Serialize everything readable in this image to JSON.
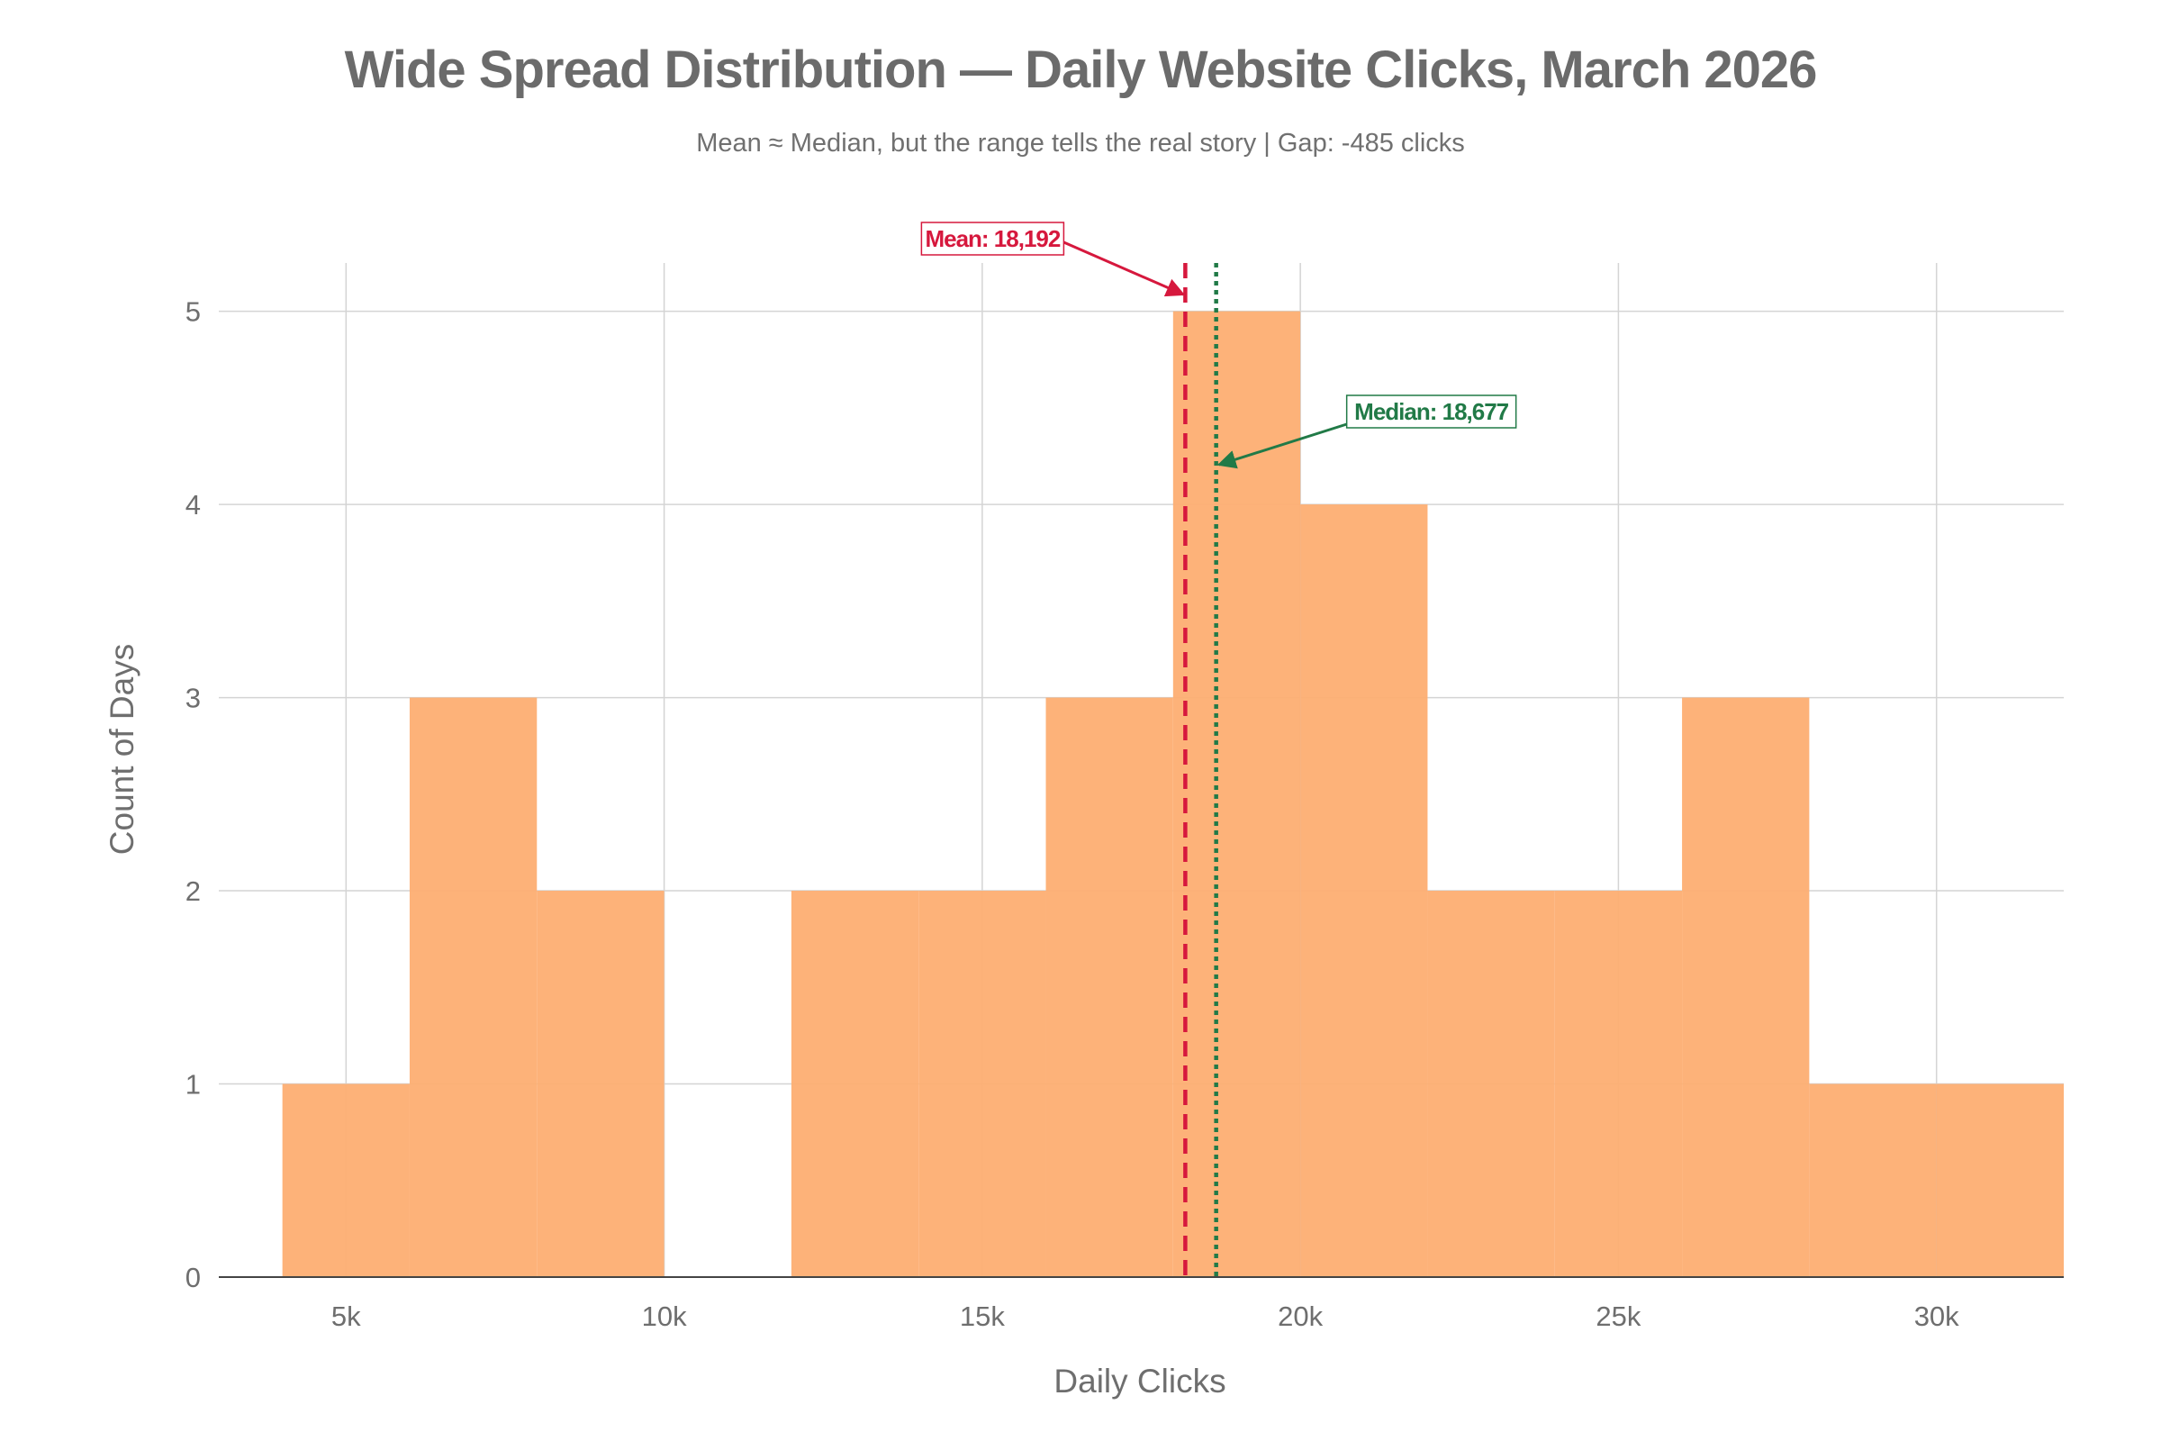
{
  "chart_data": {
    "type": "bar",
    "subtype": "histogram",
    "title": "Wide Spread Distribution — Daily Website Clicks, March 2026",
    "subtitle": "Mean ≈ Median, but the range tells the real story | Gap: -485 clicks",
    "xlabel": "Daily Clicks",
    "ylabel": "Count of Days",
    "xlim": [
      3000,
      32000
    ],
    "ylim": [
      0,
      5.25
    ],
    "x_ticks": [
      5000,
      10000,
      15000,
      20000,
      25000,
      30000
    ],
    "x_tick_labels": [
      "5k",
      "10k",
      "15k",
      "20k",
      "25k",
      "30k"
    ],
    "y_ticks": [
      0,
      1,
      2,
      3,
      4,
      5
    ],
    "y_tick_labels": [
      "0",
      "1",
      "2",
      "3",
      "4",
      "5"
    ],
    "grid": true,
    "bar_color": "#fdae72",
    "bins": [
      {
        "start": 4000,
        "end": 6000,
        "count": 1
      },
      {
        "start": 6000,
        "end": 8000,
        "count": 3
      },
      {
        "start": 8000,
        "end": 10000,
        "count": 2
      },
      {
        "start": 10000,
        "end": 12000,
        "count": 0
      },
      {
        "start": 12000,
        "end": 14000,
        "count": 2
      },
      {
        "start": 14000,
        "end": 16000,
        "count": 2
      },
      {
        "start": 16000,
        "end": 18000,
        "count": 3
      },
      {
        "start": 18000,
        "end": 20000,
        "count": 5
      },
      {
        "start": 20000,
        "end": 22000,
        "count": 4
      },
      {
        "start": 22000,
        "end": 24000,
        "count": 2
      },
      {
        "start": 24000,
        "end": 26000,
        "count": 2
      },
      {
        "start": 26000,
        "end": 28000,
        "count": 3
      },
      {
        "start": 28000,
        "end": 30000,
        "count": 1
      },
      {
        "start": 30000,
        "end": 32000,
        "count": 1
      }
    ],
    "reference_lines": [
      {
        "name": "mean",
        "label": "Mean: 18,192",
        "x": 18192,
        "style": "dashed",
        "color": "#d6183d"
      },
      {
        "name": "median",
        "label": "Median: 18,677",
        "x": 18677,
        "style": "dotted",
        "color": "#217a47"
      }
    ]
  }
}
